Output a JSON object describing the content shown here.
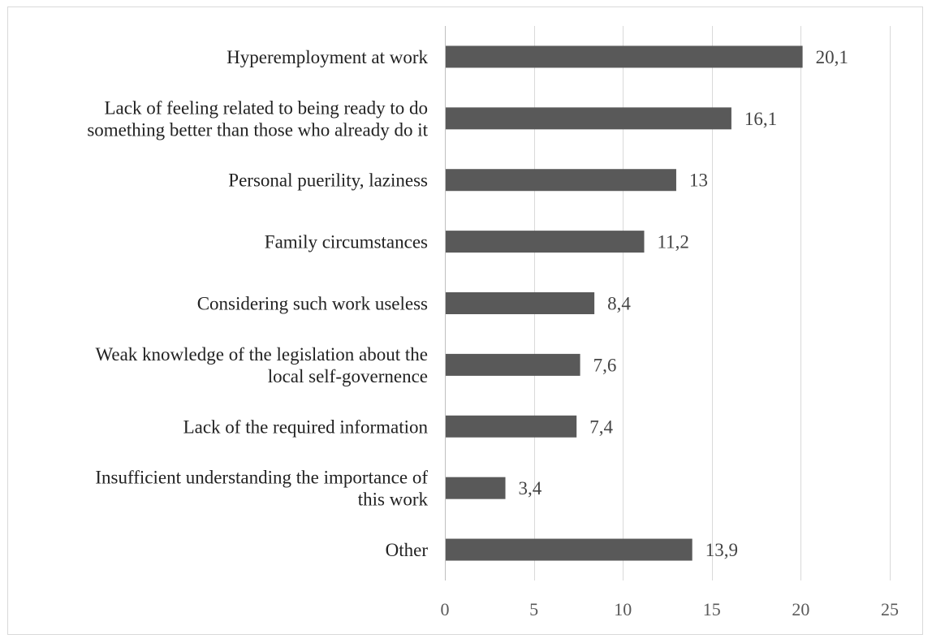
{
  "chart_data": {
    "type": "bar",
    "orientation": "horizontal",
    "categories": [
      [
        "Hyperemployment at work"
      ],
      [
        "Lack of feeling related to being ready to do",
        "something better than those who already do it"
      ],
      [
        "Personal puerility, laziness"
      ],
      [
        "Family circumstances"
      ],
      [
        "Considering such work useless"
      ],
      [
        "Weak knowledge of the legislation about the",
        "local self-governence"
      ],
      [
        "Lack of the required information"
      ],
      [
        "Insufficient understanding the importance of",
        "this work"
      ],
      [
        "Other"
      ]
    ],
    "values": [
      20.1,
      16.1,
      13,
      11.2,
      8.4,
      7.6,
      7.4,
      3.4,
      13.9
    ],
    "value_labels": [
      "20,1",
      "16,1",
      "13",
      "11,2",
      "8,4",
      "7,6",
      "7,4",
      "3,4",
      "13,9"
    ],
    "xlim": [
      0,
      25
    ],
    "xticks": [
      0,
      5,
      10,
      15,
      20,
      25
    ],
    "xtick_labels": [
      "0",
      "5",
      "10",
      "15",
      "20",
      "25"
    ],
    "title": "",
    "xlabel": "",
    "ylabel": "",
    "grid": "vertical",
    "colors": {
      "bar": "#595959",
      "grid": "#d9d9d9",
      "axis": "#bfbfbf",
      "text": "#222222"
    }
  }
}
